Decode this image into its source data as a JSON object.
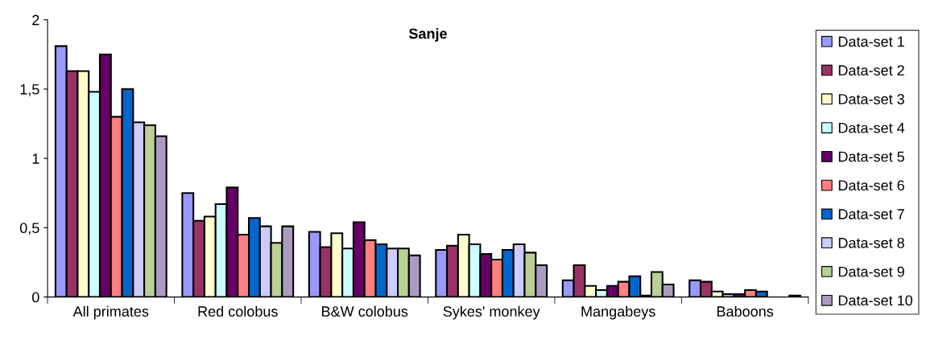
{
  "chart_data": {
    "type": "bar",
    "title": "Sanje",
    "categories": [
      "All primates",
      "Red colobus",
      "B&W colobus",
      "Sykes' monkey",
      "Mangabeys",
      "Baboons"
    ],
    "series": [
      {
        "name": "Data-set 1",
        "color": "#9999ff",
        "values": [
          1.81,
          0.75,
          0.47,
          0.34,
          0.12,
          0.12
        ]
      },
      {
        "name": "Data-set 2",
        "color": "#993366",
        "values": [
          1.63,
          0.55,
          0.36,
          0.37,
          0.23,
          0.11
        ]
      },
      {
        "name": "Data-set 3",
        "color": "#ffffcc",
        "values": [
          1.63,
          0.58,
          0.46,
          0.45,
          0.08,
          0.04
        ]
      },
      {
        "name": "Data-set 4",
        "color": "#ccffff",
        "values": [
          1.48,
          0.67,
          0.35,
          0.38,
          0.05,
          0.02
        ]
      },
      {
        "name": "Data-set 5",
        "color": "#660066",
        "values": [
          1.75,
          0.79,
          0.54,
          0.31,
          0.08,
          0.02
        ]
      },
      {
        "name": "Data-set 6",
        "color": "#ff8080",
        "values": [
          1.3,
          0.45,
          0.41,
          0.27,
          0.11,
          0.05
        ]
      },
      {
        "name": "Data-set 7",
        "color": "#0066cc",
        "values": [
          1.5,
          0.57,
          0.38,
          0.34,
          0.15,
          0.04
        ]
      },
      {
        "name": "Data-set 8",
        "color": "#ccccff",
        "values": [
          1.26,
          0.51,
          0.35,
          0.38,
          0.01,
          0
        ]
      },
      {
        "name": "Data-set 9",
        "color": "#bbcf96",
        "values": [
          1.24,
          0.39,
          0.35,
          0.32,
          0.18,
          0
        ]
      },
      {
        "name": "Data-set 10",
        "color": "#aa9cc1",
        "values": [
          1.16,
          0.51,
          0.3,
          0.23,
          0.09,
          0.01
        ]
      }
    ],
    "ylim": [
      0,
      2
    ],
    "yticks": [
      0,
      {
        "value": 0.5,
        "label": "0,5"
      },
      1,
      {
        "value": 1.5,
        "label": "1,5"
      },
      2
    ],
    "grid": false,
    "legend": "right"
  }
}
